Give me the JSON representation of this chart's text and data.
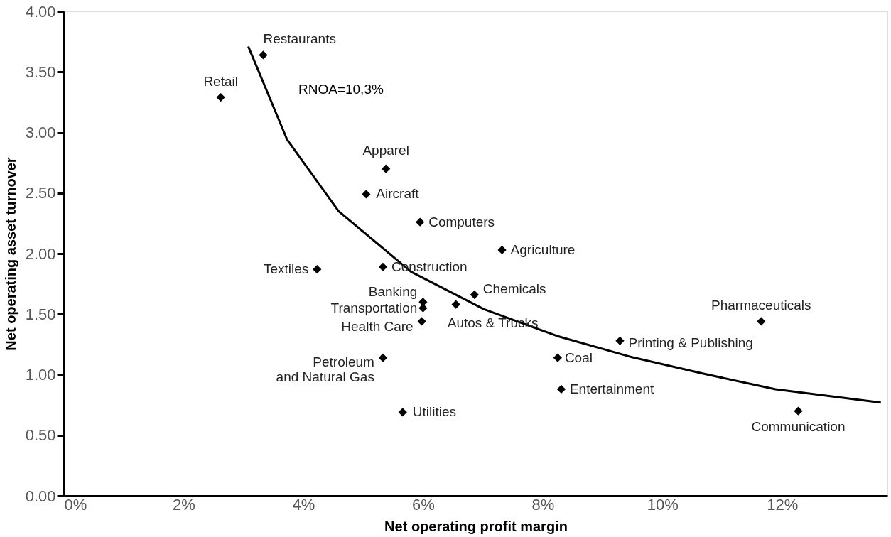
{
  "chart_data": {
    "type": "scatter",
    "xlabel": "Net operating profit margin",
    "ylabel": "Net operating asset turnover",
    "xlim": [
      0,
      13.76
    ],
    "ylim": [
      0,
      4.0
    ],
    "xticks": [
      {
        "value": 0,
        "label": "0%"
      },
      {
        "value": 2,
        "label": "2%"
      },
      {
        "value": 4,
        "label": "4%"
      },
      {
        "value": 6,
        "label": "6%"
      },
      {
        "value": 8,
        "label": "8%"
      },
      {
        "value": 10,
        "label": "10%"
      },
      {
        "value": 12,
        "label": "12%"
      }
    ],
    "yticks": [
      {
        "value": 0,
        "label": "0.00"
      },
      {
        "value": 0.5,
        "label": "0.50"
      },
      {
        "value": 1,
        "label": "1.00"
      },
      {
        "value": 1.5,
        "label": "1.50"
      },
      {
        "value": 2,
        "label": "2.00"
      },
      {
        "value": 2.5,
        "label": "2.50"
      },
      {
        "value": 3,
        "label": "3.00"
      },
      {
        "value": 3.5,
        "label": "3.50"
      },
      {
        "value": 4,
        "label": "4.00"
      }
    ],
    "grid": false,
    "series": [
      {
        "marker": "diamond",
        "color": "#000000",
        "x": [
          3.33,
          2.62,
          5.38,
          5.05,
          5.95,
          7.32,
          4.23,
          5.33,
          6.0,
          6.0,
          6.86,
          6.55,
          5.98,
          5.33,
          5.66,
          8.25,
          8.31,
          9.29,
          11.65,
          12.27
        ],
        "values": [
          3.64,
          3.29,
          2.7,
          2.49,
          2.26,
          2.03,
          1.87,
          1.89,
          1.6,
          1.55,
          1.66,
          1.58,
          1.44,
          1.14,
          0.69,
          1.14,
          0.88,
          1.28,
          1.44,
          0.7
        ]
      },
      {
        "type": "line",
        "marker": "none",
        "color": "#000000",
        "line_style": "solid",
        "x": [
          3.08,
          3.73,
          4.59,
          5.8,
          7.02,
          8.24,
          9.45,
          10.67,
          11.89,
          13.65
        ],
        "values": [
          3.71,
          2.94,
          2.35,
          1.85,
          1.54,
          1.32,
          1.15,
          1.01,
          0.88,
          0.77
        ]
      }
    ],
    "annotations": [
      {
        "text": "Restaurants",
        "x": 3.33,
        "y": 3.64
      },
      {
        "text": "Retail",
        "x": 2.62,
        "y": 3.29
      },
      {
        "text": "Apparel",
        "x": 5.38,
        "y": 2.7
      },
      {
        "text": "Aircraft",
        "x": 5.05,
        "y": 2.49
      },
      {
        "text": "Computers",
        "x": 5.95,
        "y": 2.26
      },
      {
        "text": "Agriculture",
        "x": 7.32,
        "y": 2.03
      },
      {
        "text": "Textiles",
        "x": 4.23,
        "y": 1.87
      },
      {
        "text": "Construction",
        "x": 5.33,
        "y": 1.89
      },
      {
        "text": "Banking",
        "x": 6.0,
        "y": 1.6
      },
      {
        "text": "Transportation",
        "x": 6.0,
        "y": 1.55
      },
      {
        "text": "Chemicals",
        "x": 6.86,
        "y": 1.66
      },
      {
        "text": "Autos & Trucks",
        "x": 6.55,
        "y": 1.58
      },
      {
        "text": "Health Care",
        "x": 5.98,
        "y": 1.44
      },
      {
        "text": "Petroleum\nand Natural Gas",
        "x": 5.33,
        "y": 1.14
      },
      {
        "text": "Utilities",
        "x": 5.66,
        "y": 0.69
      },
      {
        "text": "Coal",
        "x": 8.25,
        "y": 1.14
      },
      {
        "text": "Entertainment",
        "x": 8.31,
        "y": 0.88
      },
      {
        "text": "Printing & Publishing",
        "x": 9.29,
        "y": 1.28
      },
      {
        "text": "Pharmaceuticals",
        "x": 11.65,
        "y": 1.44
      },
      {
        "text": "Communication",
        "x": 12.27,
        "y": 0.7
      },
      "RNOA=10,3%"
    ]
  }
}
